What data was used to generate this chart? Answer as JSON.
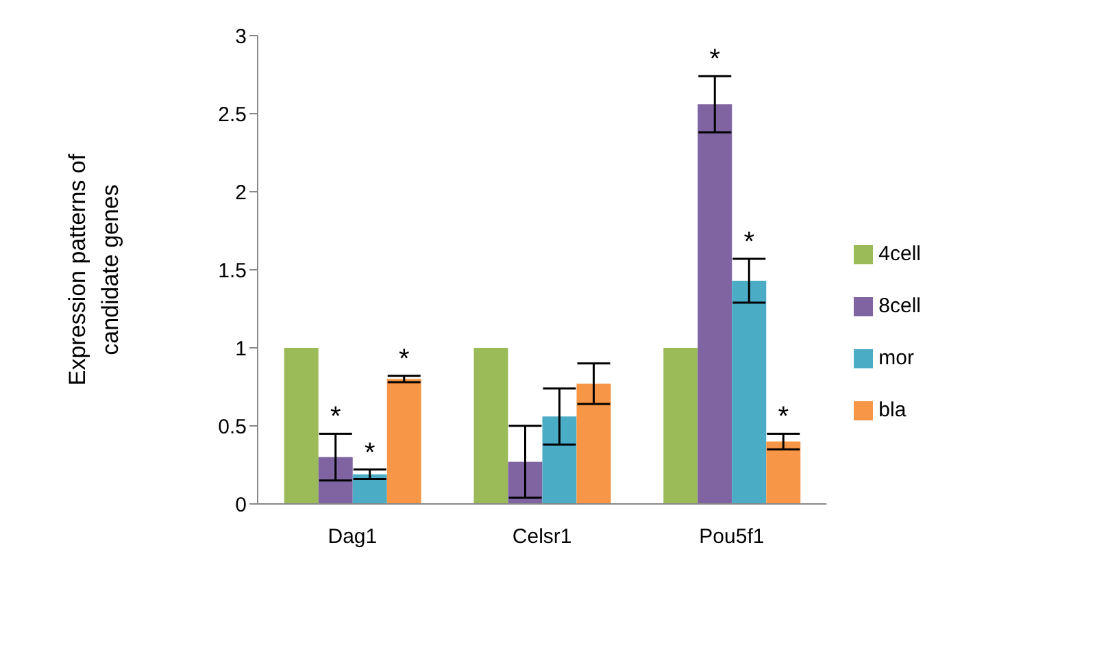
{
  "chart_data": {
    "type": "bar",
    "ylabel": "Expression patterns of candidate genes",
    "categories": [
      "Dag1",
      "Celsr1",
      "Pou5f1"
    ],
    "series": [
      {
        "name": "4cell",
        "color": "#9bbb59",
        "values": [
          1,
          1,
          1
        ],
        "errors": [
          0,
          0,
          0
        ]
      },
      {
        "name": "8cell",
        "color": "#8064a2",
        "values": [
          0.3,
          0.27,
          2.56
        ],
        "errors": [
          0.15,
          0.23,
          0.18
        ],
        "value_labels": [
          "*",
          null,
          "*"
        ]
      },
      {
        "name": "mor",
        "color": "#4bacc6",
        "values": [
          0.19,
          0.56,
          1.43
        ],
        "errors": [
          0.03,
          0.18,
          0.14
        ],
        "value_labels": [
          "*",
          null,
          "*"
        ]
      },
      {
        "name": "bla",
        "color": "#f79646",
        "values": [
          0.8,
          0.77,
          0.4
        ],
        "errors": [
          0.02,
          0.13,
          0.05
        ],
        "value_labels": [
          "*",
          null,
          "*"
        ]
      }
    ],
    "ylim": [
      0,
      3
    ],
    "yticks": [
      0,
      0.5,
      1,
      1.5,
      2,
      2.5,
      3
    ],
    "grid": false,
    "legend": "right"
  }
}
